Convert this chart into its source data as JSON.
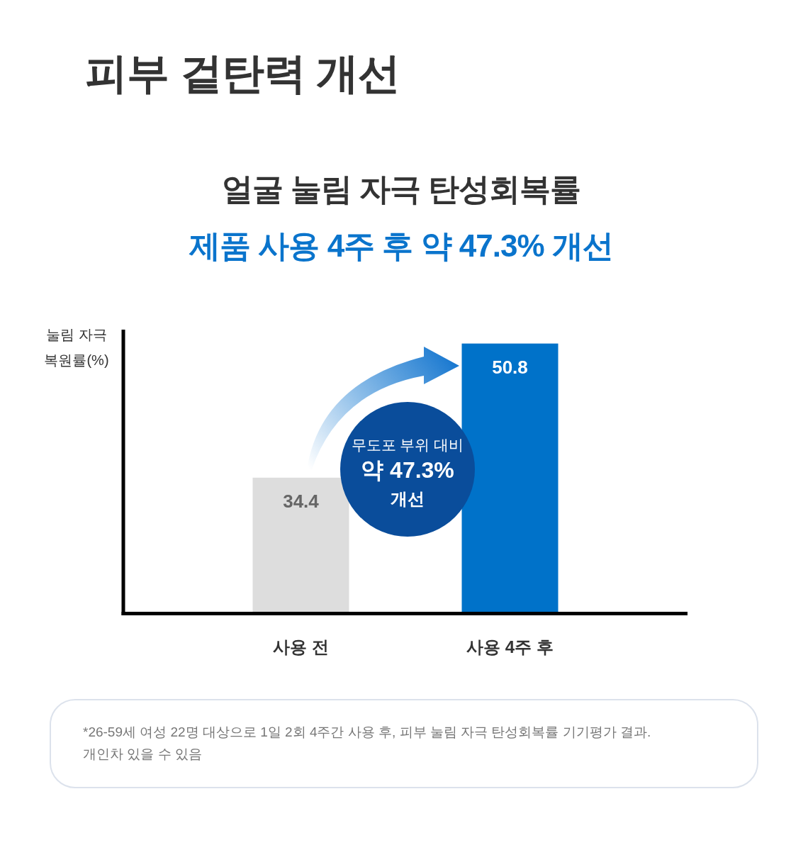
{
  "chart_data": {
    "type": "bar",
    "title": "피부 겉탄력 개선",
    "subtitle": "얼굴 눌림 자극 탄성회복률",
    "ylabel": "눌림 자극 복원률(%)",
    "categories": [
      "사용 전",
      "사용 4주 후"
    ],
    "values": [
      34.4,
      50.8
    ],
    "colors": [
      "#dddddd",
      "#0072c9"
    ],
    "ylim": [
      18,
      52.5
    ],
    "tick_labels": "x",
    "data_labels": true,
    "annotations": [
      "제품 사용 4주 후 약 47.3% 개선",
      "무도포 부위 대비\n약 47.3%\n개선",
      "*26-59세 여성 22명 대상으로 1일 2회 4주간 사용 후, 피부 눌림 자극 탄성회복률 기기평가 결과.\n개인차 있을 수 있음"
    ]
  }
}
